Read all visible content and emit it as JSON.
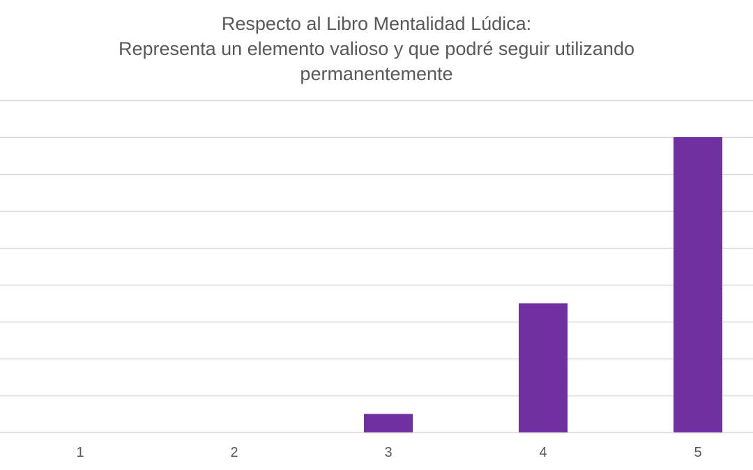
{
  "chart_data": {
    "type": "bar",
    "title": [
      "Respecto al Libro Mentalidad Lúdica:",
      "Representa un elemento valioso y que podré seguir utilizando",
      "permanentemente"
    ],
    "xlabel": "",
    "ylabel": "",
    "categories": [
      "1",
      "2",
      "3",
      "4",
      "5"
    ],
    "values": [
      0,
      0,
      1,
      7,
      16
    ],
    "ylim": [
      0,
      18
    ],
    "gridlines_step": 2,
    "grid": true,
    "legend": "none",
    "bar_color": "#7030A0",
    "gridline_color": "#D9D9D9",
    "text_color": "#595959"
  }
}
